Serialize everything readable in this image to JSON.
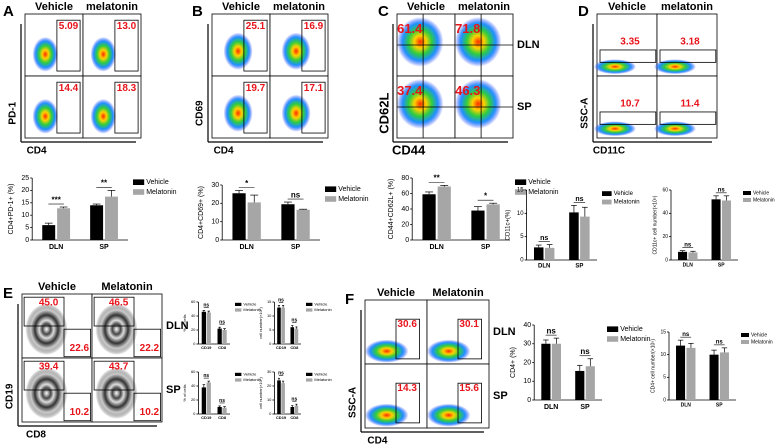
{
  "flow": [
    {
      "letter": "A",
      "columns": [
        "Vehicle",
        "melatonin"
      ],
      "rows": [],
      "gates": [
        [
          "5.09"
        ],
        [
          "13.0"
        ],
        [
          "14.4"
        ],
        [
          "18.3"
        ]
      ],
      "ylabel": "PD-1",
      "xlabel": "CD4"
    },
    {
      "letter": "B",
      "columns": [
        "Vehicle",
        "melatonin"
      ],
      "rows": [],
      "gates": [
        [
          "25.1"
        ],
        [
          "16.9"
        ],
        [
          "19.7"
        ],
        [
          "17.1"
        ]
      ],
      "ylabel": "CD69",
      "xlabel": "CD4"
    },
    {
      "letter": "C",
      "columns": [
        "Vehicle",
        "melatonin"
      ],
      "rows": [
        "DLN",
        "SP"
      ],
      "gates": [
        [
          "61.4"
        ],
        [
          "71.8"
        ],
        [
          "37.4"
        ],
        [
          "46.3"
        ]
      ],
      "ylabel": "CD62L",
      "xlabel": "CD44"
    },
    {
      "letter": "D",
      "columns": [
        "Vehicle",
        "melatonin"
      ],
      "rows": [],
      "gates": [
        [
          "3.35"
        ],
        [
          "3.18"
        ],
        [
          "10.7"
        ],
        [
          "11.4"
        ]
      ],
      "ylabel": "SSC-A",
      "xlabel": "CD11C"
    },
    {
      "letter": "E",
      "columns": [
        "Vehicle",
        "Melatonin"
      ],
      "rows": [
        "DLN",
        "SP"
      ],
      "gates": [
        [
          "45.0",
          "22.6"
        ],
        [
          "46.5",
          "22.2"
        ],
        [
          "39.4",
          "10.2"
        ],
        [
          "43.7",
          "10.2"
        ]
      ],
      "ylabel": "CD19",
      "xlabel": "CD8"
    },
    {
      "letter": "F",
      "columns": [
        "Vehicle",
        "Melatonin"
      ],
      "rows": [
        "DLN",
        "SP"
      ],
      "gates": [
        [
          "30.6"
        ],
        [
          "30.1"
        ],
        [
          "14.3"
        ],
        [
          "15.6"
        ]
      ],
      "ylabel": "SSC-A",
      "xlabel": "CD4"
    }
  ],
  "chart_data": [
    {
      "type": "bar",
      "ylabel": "CD4+PD-1+ (%)",
      "categories": [
        "DLN",
        "SP"
      ],
      "ylim": [
        0,
        25
      ],
      "yticks": [
        0,
        5,
        10,
        15,
        20,
        25
      ],
      "significance": [
        "***",
        "**"
      ],
      "series": [
        {
          "name": "Vehicle",
          "color": "#000000",
          "values": [
            6,
            14
          ],
          "errors": [
            0.8,
            0.5
          ]
        },
        {
          "name": "Melatonin",
          "color": "#a6a6a6",
          "values": [
            12.8,
            17.5
          ],
          "errors": [
            0.5,
            2.5
          ]
        }
      ]
    },
    {
      "type": "bar",
      "ylabel": "CD4+CD69+ (%)",
      "categories": [
        "DLN",
        "SP"
      ],
      "ylim": [
        0,
        30
      ],
      "yticks": [
        0,
        10,
        20,
        30
      ],
      "significance": [
        "*",
        "ns"
      ],
      "series": [
        {
          "name": "Vehicle",
          "color": "#000000",
          "values": [
            25.5,
            19.5
          ],
          "errors": [
            1.5,
            1.2
          ]
        },
        {
          "name": "Melatonin",
          "color": "#a6a6a6",
          "values": [
            20.5,
            16.5
          ],
          "errors": [
            4,
            0.3
          ]
        }
      ]
    },
    {
      "type": "bar",
      "ylabel": "CD44+CD62L+ (%)",
      "categories": [
        "DLN",
        "SP"
      ],
      "ylim": [
        0,
        80
      ],
      "yticks": [
        0,
        20,
        40,
        60,
        80
      ],
      "significance": [
        "**",
        "*"
      ],
      "series": [
        {
          "name": "Vehicle",
          "color": "#000000",
          "values": [
            59,
            38
          ],
          "errors": [
            3,
            5
          ]
        },
        {
          "name": "Melatonin",
          "color": "#a6a6a6",
          "values": [
            69,
            46
          ],
          "errors": [
            1.5,
            1.5
          ]
        }
      ]
    },
    {
      "type": "bar",
      "ylabel": "CD11c+(%)",
      "categories": [
        "DLN",
        "SP"
      ],
      "ylim": [
        0,
        15
      ],
      "yticks": [
        0,
        5,
        10,
        15
      ],
      "significance": [
        "ns",
        "ns"
      ],
      "series": [
        {
          "name": "Vehicle",
          "color": "#000000",
          "values": [
            2.7,
            10.2
          ],
          "errors": [
            0.5,
            1.5
          ]
        },
        {
          "name": "Melatonin",
          "color": "#a6a6a6",
          "values": [
            2.6,
            9.3
          ],
          "errors": [
            0.7,
            2
          ]
        }
      ]
    },
    {
      "type": "bar",
      "ylabel": "CD11c+ cell number(×10⁵)",
      "categories": [
        "DLN",
        "SP"
      ],
      "ylim": [
        0,
        60
      ],
      "yticks": [
        0,
        20,
        40,
        60
      ],
      "significance": [
        "ns",
        "ns"
      ],
      "series": [
        {
          "name": "Vehicle",
          "color": "#000000",
          "values": [
            7,
            52
          ],
          "errors": [
            1,
            3
          ]
        },
        {
          "name": "Melatonin",
          "color": "#a6a6a6",
          "values": [
            6.5,
            51
          ],
          "errors": [
            1,
            4
          ]
        }
      ]
    },
    {
      "type": "bar",
      "ylabel": "% of cells",
      "categories": [
        "CD19",
        "CD8"
      ],
      "ylim": [
        0,
        60
      ],
      "yticks": [
        0,
        20,
        40,
        60
      ],
      "significance": [
        "ns",
        "ns"
      ],
      "series": [
        {
          "name": "Vehicle",
          "color": "#000000",
          "values": [
            46,
            22
          ],
          "errors": [
            2,
            2
          ]
        },
        {
          "name": "Melatonin",
          "color": "#a6a6a6",
          "values": [
            45,
            20
          ],
          "errors": [
            2,
            2
          ]
        }
      ]
    },
    {
      "type": "bar",
      "ylabel": "cell number(×10⁵)",
      "categories": [
        "CD19",
        "CD8"
      ],
      "ylim": [
        0,
        15
      ],
      "yticks": [
        0,
        5,
        10,
        15
      ],
      "significance": [
        "ns",
        "ns"
      ],
      "series": [
        {
          "name": "Vehicle",
          "color": "#000000",
          "values": [
            13,
            6
          ],
          "errors": [
            0.8,
            0.6
          ]
        },
        {
          "name": "Melatonin",
          "color": "#a6a6a6",
          "values": [
            13,
            5.5
          ],
          "errors": [
            0.8,
            0.6
          ]
        }
      ]
    },
    {
      "type": "bar",
      "ylabel": "% of cells",
      "categories": [
        "CD19",
        "CD8"
      ],
      "ylim": [
        0,
        60
      ],
      "yticks": [
        0,
        20,
        40,
        60
      ],
      "significance": [
        "ns",
        "ns"
      ],
      "series": [
        {
          "name": "Vehicle",
          "color": "#000000",
          "values": [
            38,
            10
          ],
          "errors": [
            4,
            1.5
          ]
        },
        {
          "name": "Melatonin",
          "color": "#a6a6a6",
          "values": [
            45,
            9
          ],
          "errors": [
            2,
            1.5
          ]
        }
      ]
    },
    {
      "type": "bar",
      "ylabel": "cell number(×10⁵)",
      "categories": [
        "CD19",
        "CD8"
      ],
      "ylim": [
        0,
        30
      ],
      "yticks": [
        0,
        10,
        20,
        30
      ],
      "significance": [
        "ns",
        "ns"
      ],
      "series": [
        {
          "name": "Vehicle",
          "color": "#000000",
          "values": [
            24,
            5
          ],
          "errors": [
            1.5,
            1
          ]
        },
        {
          "name": "Melatonin",
          "color": "#a6a6a6",
          "values": [
            22,
            6
          ],
          "errors": [
            1.5,
            1
          ]
        }
      ]
    },
    {
      "type": "bar",
      "ylabel": "CD4+ (%)",
      "categories": [
        "DLN",
        "SP"
      ],
      "ylim": [
        0,
        40
      ],
      "yticks": [
        0,
        10,
        20,
        30,
        40
      ],
      "significance": [
        "ns",
        "ns"
      ],
      "series": [
        {
          "name": "Vehicle",
          "color": "#000000",
          "values": [
            30,
            15.5
          ],
          "errors": [
            2,
            3
          ]
        },
        {
          "name": "Melatonin",
          "color": "#a6a6a6",
          "values": [
            30,
            18
          ],
          "errors": [
            3,
            4
          ]
        }
      ]
    },
    {
      "type": "bar",
      "ylabel": "CD4+ cell number(×10⁵)",
      "categories": [
        "DLN",
        "SP"
      ],
      "ylim": [
        0,
        15
      ],
      "yticks": [
        0,
        5,
        10,
        15
      ],
      "significance": [
        "ns",
        "ns"
      ],
      "series": [
        {
          "name": "Vehicle",
          "color": "#000000",
          "values": [
            12,
            10
          ],
          "errors": [
            1.2,
            1
          ]
        },
        {
          "name": "Melatonin",
          "color": "#a6a6a6",
          "values": [
            11.5,
            10.5
          ],
          "errors": [
            1,
            1
          ]
        }
      ]
    }
  ]
}
